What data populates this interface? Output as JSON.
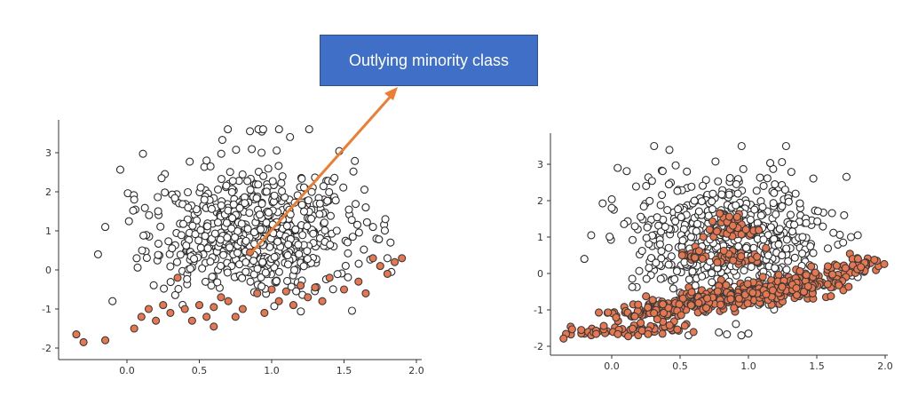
{
  "annotation": {
    "text": "Outlying minority class",
    "box_color": "#3f6fc6",
    "arrow_color": "#ed7d31"
  },
  "colors": {
    "majority_fill": "#ffffff",
    "majority_edge": "#2b2b2b",
    "minority_fill": "#e8774f",
    "minority_edge": "#3a3a3a"
  },
  "chart_data": [
    {
      "type": "scatter",
      "title": "",
      "xlabel": "",
      "ylabel": "",
      "xlim": [
        -0.5,
        2.0
      ],
      "ylim": [
        -2.2,
        3.8
      ],
      "xticks": [
        "0.0",
        "0.5",
        "1.0",
        "1.5",
        "2.0"
      ],
      "yticks": [
        "-2",
        "-1",
        "0",
        "1",
        "2",
        "3"
      ],
      "grid": false,
      "series": [
        {
          "class": "majority",
          "cluster": {
            "center": [
              0.85,
              0.95
            ],
            "spread": [
              0.35,
              0.9
            ],
            "count": 650,
            "x_range": [
              -0.3,
              2.0
            ],
            "y_range": [
              -1.8,
              3.6
            ]
          },
          "points": [
            [
              0.85,
              3.55
            ],
            [
              0.93,
              3.0
            ],
            [
              0.55,
              2.8
            ],
            [
              0.05,
              1.8
            ],
            [
              -0.15,
              1.1
            ],
            [
              -0.2,
              0.4
            ],
            [
              -0.1,
              -0.8
            ],
            [
              1.65,
              1.6
            ],
            [
              1.7,
              1.1
            ],
            [
              1.8,
              0.3
            ]
          ]
        },
        {
          "class": "minority",
          "points": [
            [
              -0.35,
              -1.65
            ],
            [
              -0.3,
              -1.85
            ],
            [
              -0.15,
              -1.8
            ],
            [
              0.05,
              -1.5
            ],
            [
              0.1,
              -1.2
            ],
            [
              0.2,
              -1.3
            ],
            [
              0.3,
              -1.1
            ],
            [
              0.4,
              -1.0
            ],
            [
              0.5,
              -0.9
            ],
            [
              0.6,
              -0.95
            ],
            [
              0.7,
              -0.8
            ],
            [
              0.8,
              -1.0
            ],
            [
              0.9,
              -0.6
            ],
            [
              1.0,
              -0.5
            ],
            [
              1.1,
              -0.55
            ],
            [
              1.2,
              -0.4
            ],
            [
              1.3,
              -0.45
            ],
            [
              1.4,
              -0.2
            ],
            [
              1.5,
              -0.5
            ],
            [
              1.6,
              -0.3
            ],
            [
              1.65,
              -0.6
            ],
            [
              1.75,
              0.1
            ],
            [
              1.8,
              -0.1
            ],
            [
              1.85,
              0.2
            ],
            [
              1.9,
              0.3
            ],
            [
              1.7,
              0.3
            ],
            [
              0.85,
              0.45
            ],
            [
              0.35,
              -0.2
            ],
            [
              0.45,
              -1.3
            ],
            [
              0.25,
              -0.9
            ],
            [
              0.55,
              -1.2
            ],
            [
              0.65,
              -0.7
            ],
            [
              0.75,
              -1.2
            ],
            [
              0.95,
              -1.1
            ],
            [
              1.05,
              -0.8
            ],
            [
              1.15,
              -0.9
            ],
            [
              1.25,
              -0.7
            ],
            [
              1.35,
              -0.8
            ],
            [
              0.15,
              -1.0
            ],
            [
              0.6,
              -1.45
            ]
          ]
        }
      ]
    },
    {
      "type": "scatter",
      "title": "",
      "xlabel": "",
      "ylabel": "",
      "xlim": [
        -0.45,
        2.05
      ],
      "ylim": [
        -2.2,
        3.6
      ],
      "xticks": [
        "0.0",
        "0.5",
        "1.0",
        "1.5",
        "2.0"
      ],
      "yticks": [
        "-2",
        "-1",
        "0",
        "1",
        "2",
        "3"
      ],
      "grid": false,
      "series": [
        {
          "class": "majority",
          "cluster": {
            "center": [
              0.85,
              0.95
            ],
            "spread": [
              0.35,
              0.9
            ],
            "count": 600,
            "x_range": [
              -0.3,
              1.9
            ],
            "y_range": [
              -1.7,
              3.5
            ]
          },
          "points": [
            [
              0.95,
              3.5
            ],
            [
              0.55,
              2.8
            ],
            [
              0.0,
              1.8
            ],
            [
              -0.15,
              1.05
            ],
            [
              -0.2,
              0.4
            ],
            [
              1.7,
              1.6
            ],
            [
              1.75,
              1.0
            ],
            [
              1.8,
              1.05
            ],
            [
              1.0,
              -1.65
            ]
          ]
        },
        {
          "class": "minority",
          "segments": [
            {
              "from": [
                -0.35,
                -1.7
              ],
              "to": [
                0.55,
                -1.5
              ],
              "count": 60,
              "jitter": 0.08
            },
            {
              "from": [
                0.0,
                -1.2
              ],
              "to": [
                1.9,
                0.25
              ],
              "count": 260,
              "jitter": 0.14
            },
            {
              "from": [
                0.3,
                -1.0
              ],
              "to": [
                1.7,
                -0.3
              ],
              "count": 150,
              "jitter": 0.16
            },
            {
              "from": [
                0.6,
                -0.8
              ],
              "to": [
                1.4,
                -0.4
              ],
              "count": 60,
              "jitter": 0.12
            },
            {
              "from": [
                0.5,
                0.5
              ],
              "to": [
                1.1,
                0.4
              ],
              "count": 50,
              "jitter": 0.1
            },
            {
              "from": [
                0.7,
                1.1
              ],
              "to": [
                1.05,
                1.2
              ],
              "count": 30,
              "jitter": 0.1
            },
            {
              "from": [
                0.78,
                1.6
              ],
              "to": [
                0.95,
                1.3
              ],
              "count": 20,
              "jitter": 0.08
            }
          ]
        }
      ]
    }
  ]
}
